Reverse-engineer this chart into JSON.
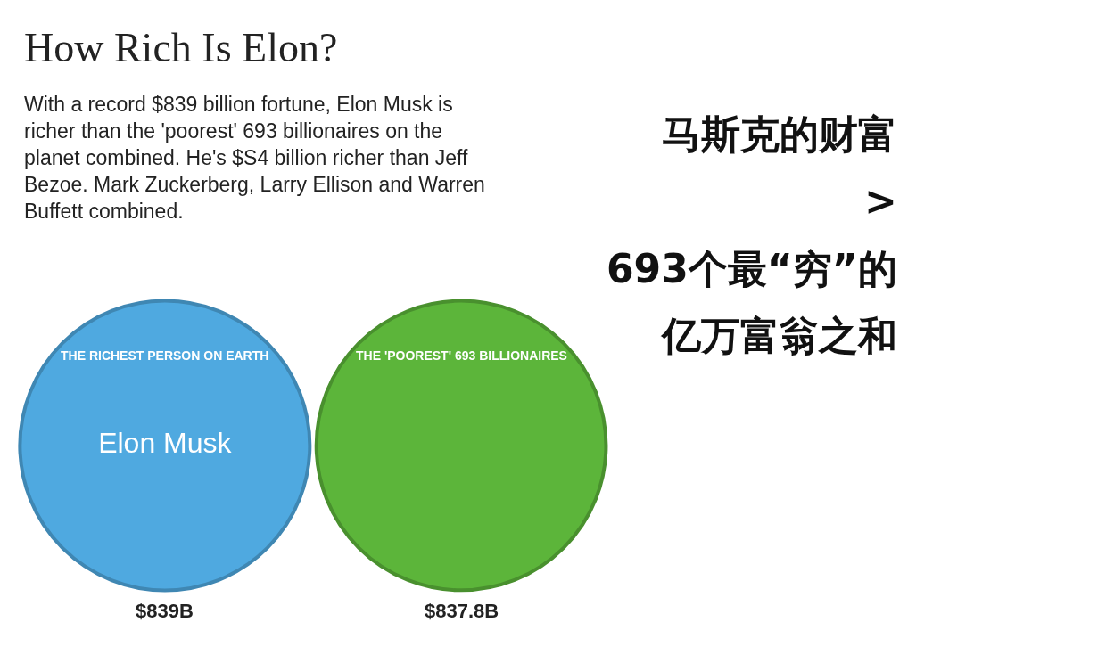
{
  "chart_data": {
    "type": "other",
    "title": "How Rich Is Elon?",
    "subtitle": "With a record $839 billion fortune, Elon Musk is richer than the 'poorest' 693 billionaires on the planet combined. He's $S4 billion richer than Jeff Bezoe. Mark Zuckerberg, Larry Ellison and Warren Buffett combined.",
    "categories": [
      "Elon Musk",
      null
    ],
    "values": [
      839,
      837.8
    ],
    "value_labels": [
      "$839B",
      "$837.8B"
    ],
    "colors": [
      "#4fa9e0",
      "#5cb53a"
    ],
    "annotations": [
      "THE RICHEST PERSON ON EARTH",
      "THE 'POOREST' 693 BILLIONAIRES",
      "马斯克的财富",
      ">",
      "693个最“穷”的",
      "亿万富翁之和"
    ]
  }
}
